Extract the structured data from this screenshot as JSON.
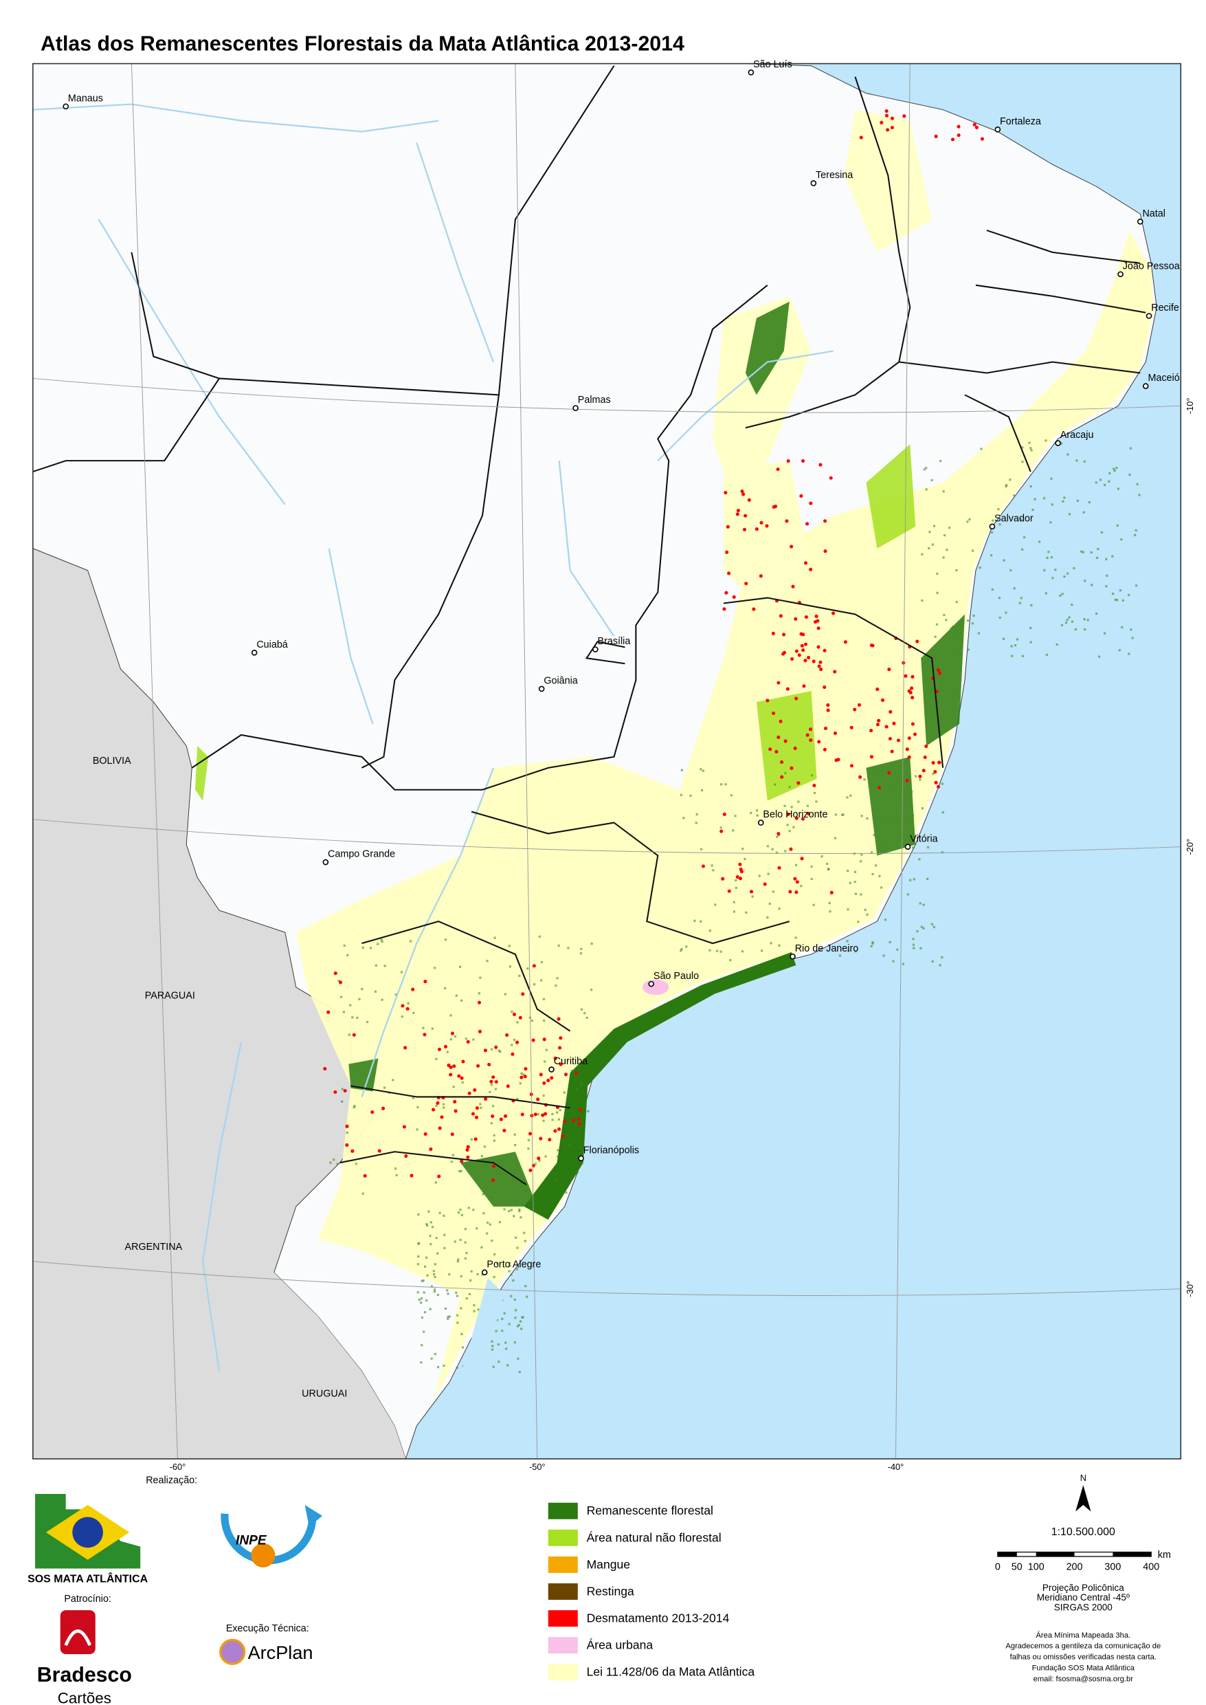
{
  "title": "Atlas dos Remanescentes Florestais da Mata Atlântica  2013-2014",
  "map": {
    "cities": [
      "São Luís",
      "Manaus",
      "Fortaleza",
      "Teresina",
      "Natal",
      "João Pessoa",
      "Recife",
      "Maceió",
      "Palmas",
      "Aracaju",
      "Salvador",
      "Cuiabá",
      "Brasília",
      "Goiânia",
      "Belo Horizonte",
      "Vitória",
      "Campo Grande",
      "Rio de Janeiro",
      "São Paulo",
      "Curitiba",
      "Florianópolis",
      "Porto Alegre"
    ],
    "countries": [
      "BOLIVIA",
      "PARAGUAI",
      "ARGENTINA",
      "URUGUAI"
    ],
    "longitude_labels": [
      "-60°",
      "-50°",
      "-40°"
    ],
    "latitude_labels": [
      "-10°",
      "-20°",
      "-30°"
    ]
  },
  "credits": {
    "realizacao": "Realização:",
    "sos": "SOS MATA ATLÂNTICA",
    "patrocinio": "Patrocínio:",
    "bradesco": "Bradesco",
    "cartoes": "Cartões",
    "inpe": "INPE",
    "execucao": "Execução Técnica:",
    "arcplan": "ArcPlan"
  },
  "legend": [
    {
      "label": "Remanescente florestal",
      "color": "#2a7a10"
    },
    {
      "label": "Área natural não florestal",
      "color": "#a6e020"
    },
    {
      "label": "Mangue",
      "color": "#f5a800"
    },
    {
      "label": "Restinga",
      "color": "#6b4500"
    },
    {
      "label": "Desmatamento 2013-2014",
      "color": "#ff0000"
    },
    {
      "label": "Área urbana",
      "color": "#f9c0e8"
    },
    {
      "label": "Lei 11.428/06 da Mata Atlântica",
      "color": "#ffffc0"
    }
  ],
  "scale": {
    "north": "N",
    "ratio": "1:10.500.000",
    "unit": "km",
    "ticks": [
      0,
      50,
      100,
      200,
      300,
      400
    ]
  },
  "notes": [
    "Projeção Policônica",
    "Meridiano Central -45º",
    "SIRGAS 2000",
    "Área Mínima Mapeada 3ha.",
    "Agradecemos a gentileza da comunicação de",
    "falhas ou omissões verificadas nesta carta.",
    "Fundação SOS Mata Atlântica",
    "email: fsosma@sosma.org.br"
  ]
}
